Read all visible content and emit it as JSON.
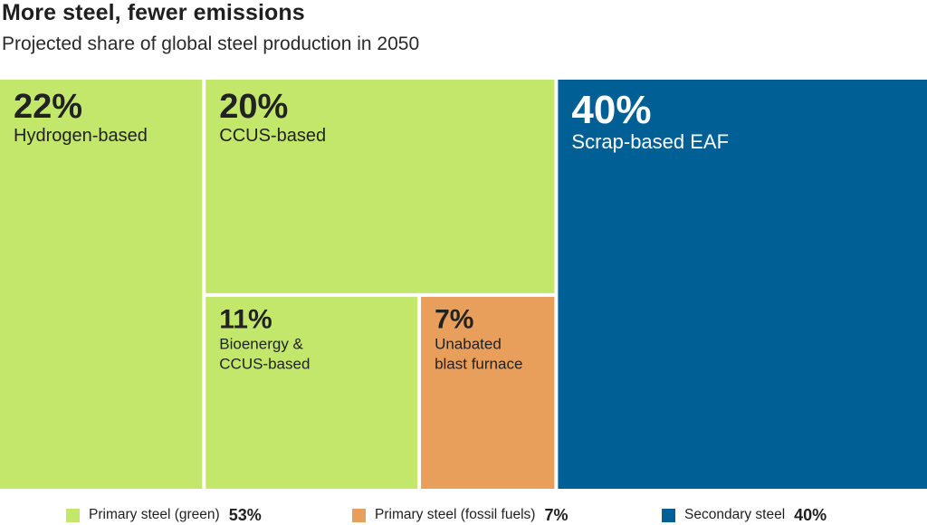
{
  "header": {
    "title": "More steel, fewer emissions",
    "subtitle": "Projected share of global steel production in 2050"
  },
  "colors": {
    "green": "#c2e76b",
    "orange": "#e99f5c",
    "blue": "#006096",
    "dark_text": "#222222",
    "light_text": "#ffffff"
  },
  "chart_data": {
    "type": "treemap",
    "title": "More steel, fewer emissions",
    "subtitle": "Projected share of global steel production in 2050",
    "unit": "%",
    "cells": [
      {
        "label": "Hydrogen-based",
        "value": 22,
        "value_label": "22%",
        "group": "Primary steel (green)",
        "color": "#c2e76b"
      },
      {
        "label": "CCUS-based",
        "value": 20,
        "value_label": "20%",
        "group": "Primary steel (green)",
        "color": "#c2e76b"
      },
      {
        "label": "Bioenergy & CCUS-based",
        "value": 11,
        "value_label": "11%",
        "group": "Primary steel (green)",
        "color": "#c2e76b"
      },
      {
        "label": "Unabated blast furnace",
        "value": 7,
        "value_label": "7%",
        "group": "Primary steel (fossil fuels)",
        "color": "#e99f5c"
      },
      {
        "label": "Scrap-based EAF",
        "value": 40,
        "value_label": "40%",
        "group": "Secondary steel",
        "color": "#006096"
      }
    ],
    "legend": [
      {
        "name": "Primary steel (green)",
        "value": 53,
        "value_label": "53%",
        "color": "#c2e76b"
      },
      {
        "name": "Primary steel (fossil fuels)",
        "value": 7,
        "value_label": "7%",
        "color": "#e99f5c"
      },
      {
        "name": "Secondary steel",
        "value": 40,
        "value_label": "40%",
        "color": "#006096"
      }
    ],
    "legend_position": "bottom"
  }
}
